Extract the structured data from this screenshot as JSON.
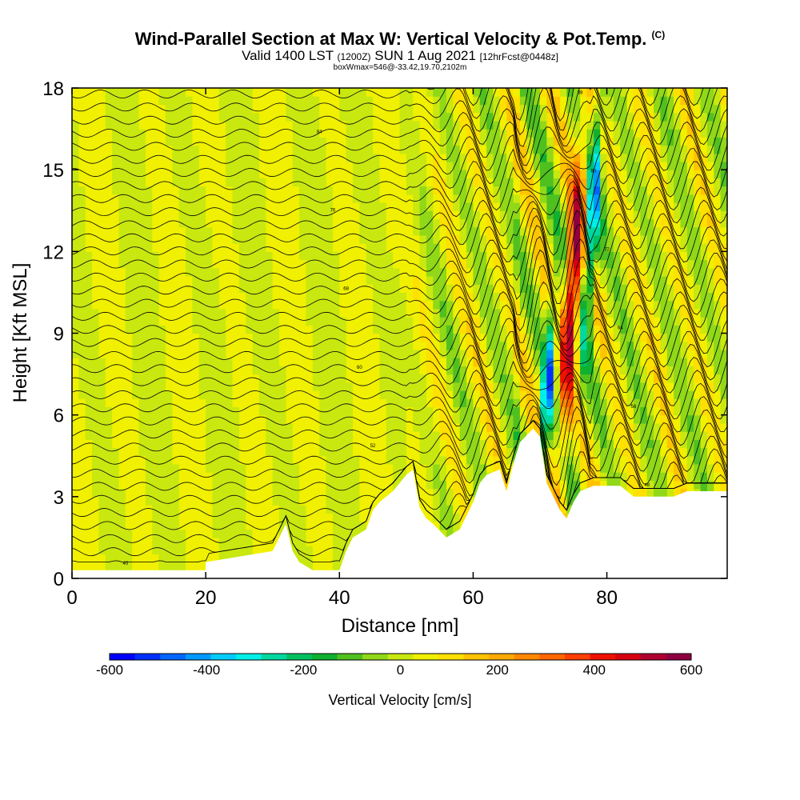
{
  "header": {
    "title_main": "Wind-Parallel Section at Max W: Vertical Velocity & Pot.Temp.",
    "title_mark": "(C)",
    "subtitle_valid": "Valid 1400 LST",
    "subtitle_z": "(1200Z)",
    "subtitle_date": "SUN 1 Aug 2021",
    "subtitle_fcst": "[12hrFcst@0448z]",
    "subtitle_box": "boxWmax=546@-33.42,19.70,2102m"
  },
  "chart_data": {
    "type": "heatmap",
    "title": "Wind-Parallel Section at Max W: Vertical Velocity & Pot.Temp.",
    "xlabel": "Distance [nm]",
    "ylabel": "Height [Kft MSL]",
    "xlim": [
      0,
      98
    ],
    "ylim": [
      0,
      18
    ],
    "x_ticks": [
      0,
      20,
      40,
      60,
      80
    ],
    "y_ticks": [
      0,
      3,
      6,
      9,
      12,
      15,
      18
    ],
    "colorbar": {
      "label": "Vertical Velocity [cm/s]",
      "ticks": [
        -600,
        -400,
        -200,
        0,
        200,
        400,
        600
      ],
      "range": [
        -600,
        600
      ],
      "colors": [
        "#0000ff",
        "#0030ff",
        "#0066ff",
        "#0099ff",
        "#00ccff",
        "#00f0e8",
        "#00d8a0",
        "#00c060",
        "#10b030",
        "#50c020",
        "#90d818",
        "#c8e810",
        "#f0f000",
        "#ffe000",
        "#ffc400",
        "#ffaa00",
        "#ff8800",
        "#ff6600",
        "#ff4000",
        "#f01000",
        "#d80010",
        "#b00030",
        "#900040"
      ]
    },
    "w_max_cm_s": 546,
    "w_max_x_nm": 72.5,
    "w_max_height_kft": 10.5,
    "terrain_kft": [
      [
        0,
        0.3
      ],
      [
        20,
        0.3
      ],
      [
        20,
        0.6
      ],
      [
        30,
        1
      ],
      [
        32,
        2
      ],
      [
        33,
        1
      ],
      [
        34,
        0.6
      ],
      [
        36,
        0.3
      ],
      [
        40,
        0.3
      ],
      [
        41,
        1
      ],
      [
        42,
        1.5
      ],
      [
        44,
        1.8
      ],
      [
        45,
        2.5
      ],
      [
        46,
        2.8
      ],
      [
        48,
        3.2
      ],
      [
        50,
        3.8
      ],
      [
        51,
        4
      ],
      [
        52,
        2.6
      ],
      [
        53,
        2.2
      ],
      [
        54,
        2
      ],
      [
        56,
        1.5
      ],
      [
        58,
        1.8
      ],
      [
        60,
        2.8
      ],
      [
        61,
        3.5
      ],
      [
        62,
        3.8
      ],
      [
        64,
        4
      ],
      [
        65,
        3.2
      ],
      [
        66,
        4.2
      ],
      [
        67,
        5
      ],
      [
        69,
        5.5
      ],
      [
        70,
        5.2
      ],
      [
        71,
        3.5
      ],
      [
        72,
        3
      ],
      [
        73,
        2.5
      ],
      [
        74,
        2.2
      ],
      [
        75,
        2.8
      ],
      [
        76,
        3.2
      ],
      [
        78,
        3.4
      ],
      [
        82,
        3.4
      ],
      [
        84,
        3
      ],
      [
        90,
        3
      ],
      [
        92,
        3.2
      ],
      [
        98,
        3.2
      ]
    ],
    "theta_contour_labels": [
      "40",
      "44",
      "48",
      "52",
      "56",
      "60",
      "64",
      "68",
      "72",
      "76",
      "80",
      "84",
      "88",
      "92"
    ]
  }
}
